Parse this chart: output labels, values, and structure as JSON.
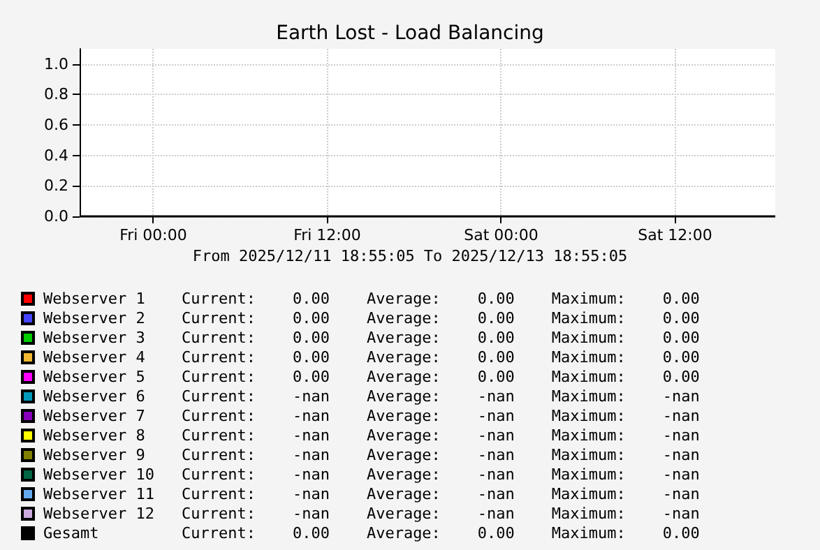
{
  "chart_data": {
    "type": "line",
    "title": "Earth Lost - Load Balancing",
    "xlabel": "From 2025/12/11 18:55:05 To 2025/12/13 18:55:05",
    "x": [
      "2025-12-11T18:55",
      "2025-12-13T18:55"
    ],
    "xlim": [
      "2025-12-11T18:55",
      "2025-12-13T18:55"
    ],
    "xticks": [
      {
        "value": "2025-12-12T00:00",
        "label": "Fri 00:00"
      },
      {
        "value": "2025-12-12T12:00",
        "label": "Fri 12:00"
      },
      {
        "value": "2025-12-13T00:00",
        "label": "Sat 00:00"
      },
      {
        "value": "2025-12-13T12:00",
        "label": "Sat 12:00"
      }
    ],
    "ylim": [
      0,
      1.1
    ],
    "yticks": [
      {
        "value": 0,
        "label": "0.0"
      },
      {
        "value": 0.2,
        "label": "0.2"
      },
      {
        "value": 0.4,
        "label": "0.4"
      },
      {
        "value": 0.6,
        "label": "0.6"
      },
      {
        "value": 0.8,
        "label": "0.8"
      },
      {
        "value": 1,
        "label": "1.0"
      }
    ],
    "grid": true,
    "legend": "bottom",
    "series": [
      {
        "name": "Webserver 1",
        "color": "#ff0000",
        "values": [
          null,
          null
        ]
      },
      {
        "name": "Webserver 2",
        "color": "#4444ff",
        "values": [
          null,
          null
        ]
      },
      {
        "name": "Webserver 3",
        "color": "#00cc00",
        "values": [
          null,
          null
        ]
      },
      {
        "name": "Webserver 4",
        "color": "#f0b830",
        "values": [
          null,
          null
        ]
      },
      {
        "name": "Webserver 5",
        "color": "#ff00ff",
        "values": [
          null,
          null
        ]
      },
      {
        "name": "Webserver 6",
        "color": "#0099bb",
        "values": [
          null,
          null
        ]
      },
      {
        "name": "Webserver 7",
        "color": "#8800bb",
        "values": [
          null,
          null
        ]
      },
      {
        "name": "Webserver 8",
        "color": "#ffff00",
        "values": [
          null,
          null
        ]
      },
      {
        "name": "Webserver 9",
        "color": "#808000",
        "values": [
          null,
          null
        ]
      },
      {
        "name": "Webserver 10",
        "color": "#006644",
        "values": [
          null,
          null
        ]
      },
      {
        "name": "Webserver 11",
        "color": "#66aaee",
        "values": [
          null,
          null
        ]
      },
      {
        "name": "Webserver 12",
        "color": "#ccaadd",
        "values": [
          null,
          null
        ]
      },
      {
        "name": "Gesamt",
        "color": "#000000",
        "values": [
          0,
          0
        ]
      }
    ],
    "annotations": [
      "Current:    0.00    Average:    0.00    Maximum:    0.00",
      "Current:    0.00    Average:    0.00    Maximum:    0.00",
      "Current:    0.00    Average:    0.00    Maximum:    0.00",
      "Current:    0.00    Average:    0.00    Maximum:    0.00",
      "Current:    0.00    Average:    0.00    Maximum:    0.00",
      "Current:    -nan    Average:    -nan    Maximum:    -nan",
      "Current:    -nan    Average:    -nan    Maximum:    -nan",
      "Current:    -nan    Average:    -nan    Maximum:    -nan",
      "Current:    -nan    Average:    -nan    Maximum:    -nan",
      "Current:    -nan    Average:    -nan    Maximum:    -nan",
      "Current:    -nan    Average:    -nan    Maximum:    -nan",
      "Current:    -nan    Average:    -nan    Maximum:    -nan",
      "Current:    0.00    Average:    0.00    Maximum:    0.00"
    ]
  }
}
